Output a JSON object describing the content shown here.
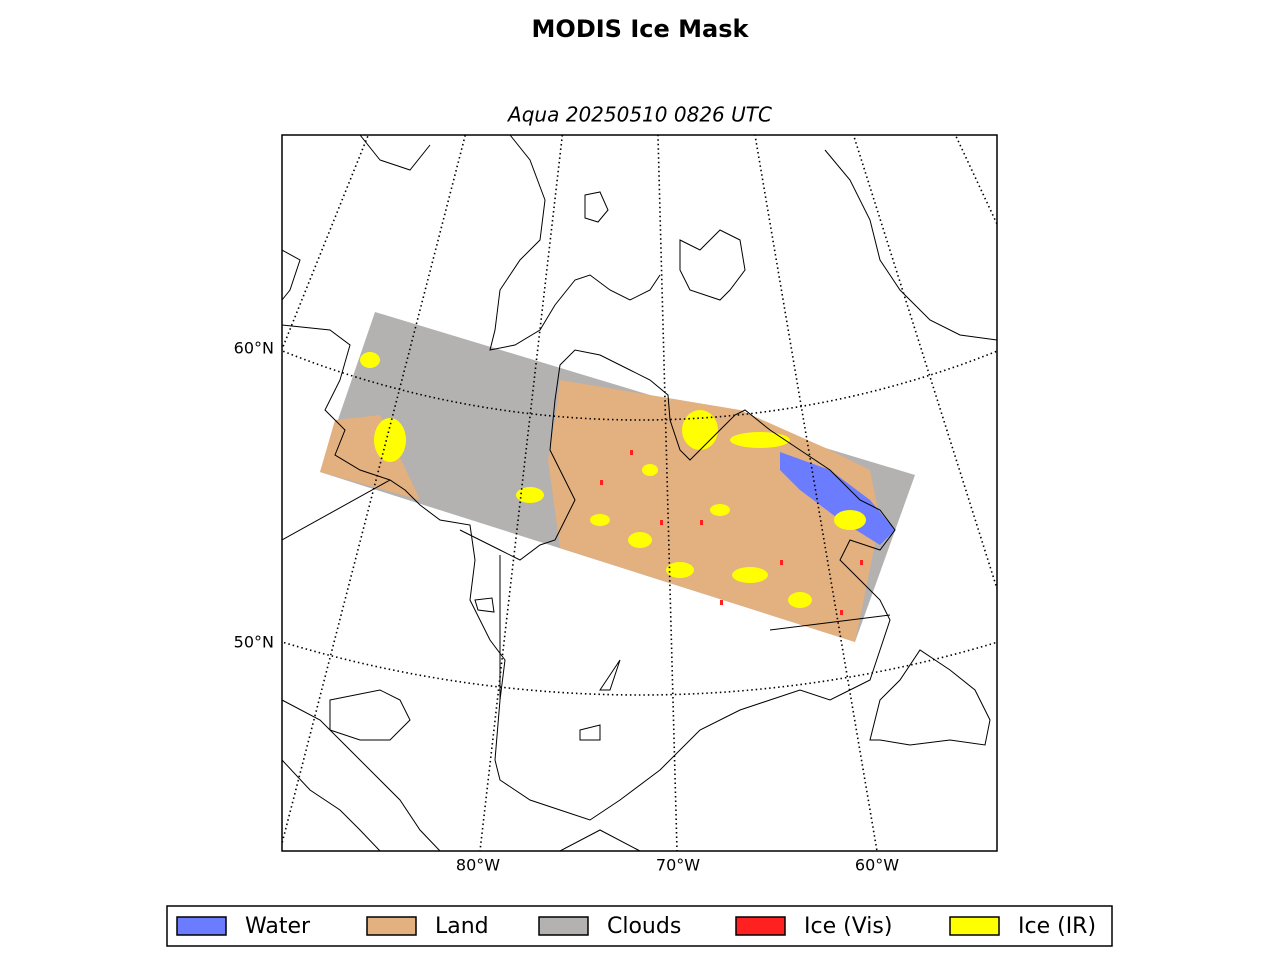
{
  "header": {
    "title": "MODIS Ice Mask",
    "subtitle": "Aqua 20250510 0826 UTC"
  },
  "map": {
    "lat_labels": [
      "60°N",
      "50°N"
    ],
    "lon_labels": [
      "80°W",
      "70°W",
      "60°W"
    ]
  },
  "legend": {
    "items": [
      {
        "label": "Water",
        "color": "#6b7cff"
      },
      {
        "label": "Land",
        "color": "#e3b07f"
      },
      {
        "label": "Clouds",
        "color": "#b4b1b1"
      },
      {
        "label": "Ice (Vis)",
        "color": "#ff2020"
      },
      {
        "label": "Ice (IR)",
        "color": "#ffff00"
      }
    ]
  }
}
